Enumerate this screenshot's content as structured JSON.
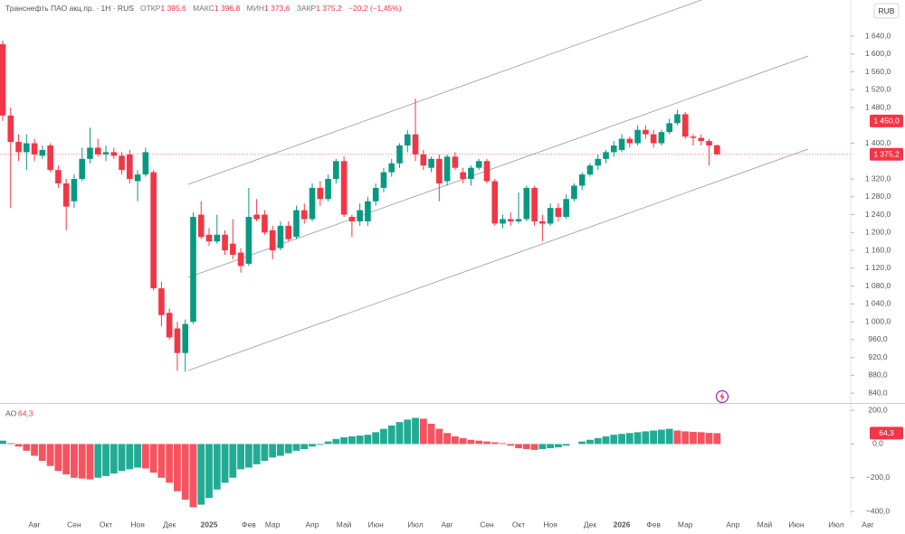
{
  "header": {
    "symbol": "Транснефть ПАО акц.пр. · 1Н · RUS",
    "stats": [
      {
        "label": "ОТКР",
        "value": "1 395,6"
      },
      {
        "label": "МАКС",
        "value": "1 396,8"
      },
      {
        "label": "МИН",
        "value": "1 373,6"
      },
      {
        "label": "ЗАКР",
        "value": "1 375,2"
      }
    ],
    "change": "−20,2 (−1,45%)",
    "currency": "RUB"
  },
  "chart_data": {
    "type": "candlestick",
    "categories": [
      null,
      null,
      null,
      null,
      "Авг",
      null,
      null,
      null,
      null,
      "Сен",
      null,
      null,
      null,
      "Окт",
      null,
      null,
      null,
      "Ноя",
      null,
      null,
      null,
      "Дек",
      null,
      null,
      null,
      null,
      "2025",
      null,
      null,
      null,
      null,
      "Фев",
      null,
      null,
      "Мар",
      null,
      null,
      null,
      null,
      "Апр",
      null,
      null,
      null,
      "Май",
      null,
      null,
      null,
      "Июн",
      null,
      null,
      null,
      null,
      "Июл",
      null,
      null,
      null,
      "Авг",
      null,
      null,
      null,
      null,
      "Сен",
      null,
      null,
      null,
      "Окт",
      null,
      null,
      null,
      "Ноя",
      null,
      null,
      null,
      null,
      "Дек",
      null,
      null,
      null,
      "2026",
      null,
      null,
      null,
      "Фев",
      null,
      null,
      null,
      "Мар",
      null,
      null,
      null,
      null,
      null,
      "Апр",
      null,
      null,
      null,
      "Май",
      null,
      null,
      null,
      "Июн",
      null,
      null,
      null,
      null,
      "Июл",
      null,
      null,
      null,
      "Авг"
    ],
    "open": [
      1622,
      1462,
      1403,
      1380,
      1400,
      1372,
      1395,
      1340,
      1310,
      1270,
      1320,
      1365,
      1390,
      1375,
      1380,
      1372,
      1375,
      1315,
      1330,
      1335,
      1075,
      1020,
      985,
      930,
      1000,
      1240,
      1195,
      1180,
      1195,
      1175,
      1155,
      1130,
      1240,
      1240,
      1205,
      1165,
      1215,
      1190,
      1250,
      1230,
      1300,
      1275,
      1320,
      1360,
      1235,
      1225,
      1225,
      1270,
      1300,
      1335,
      1355,
      1395,
      1420,
      1375,
      1345,
      1365,
      1315,
      1370,
      1335,
      1320,
      1345,
      1360,
      1315,
      1220,
      1230,
      1225,
      1230,
      1300,
      1225,
      1220,
      1255,
      1235,
      1275,
      1305,
      1330,
      1350,
      1365,
      1380,
      1385,
      1410,
      1400,
      1430,
      1420,
      1400,
      1425,
      1445,
      1465,
      1415,
      1412,
      1405,
      1395.6,
      null,
      null,
      null,
      null,
      null,
      null,
      null,
      null,
      null,
      null,
      null,
      null,
      null,
      null,
      null,
      null,
      null,
      null,
      null
    ],
    "high": [
      1630,
      1480,
      1420,
      1420,
      1410,
      1395,
      1400,
      1350,
      1320,
      1330,
      1390,
      1435,
      1410,
      1395,
      1390,
      1380,
      1385,
      1340,
      1390,
      1340,
      1090,
      1030,
      1000,
      1005,
      1245,
      1270,
      1210,
      1240,
      1205,
      1230,
      1165,
      1300,
      1275,
      1250,
      1215,
      1225,
      1225,
      1260,
      1265,
      1310,
      1315,
      1330,
      1365,
      1370,
      1240,
      1265,
      1280,
      1310,
      1345,
      1365,
      1400,
      1430,
      1500,
      1385,
      1370,
      1375,
      1375,
      1380,
      1345,
      1350,
      1365,
      1365,
      1320,
      1240,
      1245,
      1290,
      1305,
      1305,
      1240,
      1265,
      1265,
      1285,
      1310,
      1335,
      1355,
      1375,
      1385,
      1405,
      1420,
      1415,
      1440,
      1440,
      1430,
      1430,
      1455,
      1475,
      1470,
      1420,
      1420,
      1410,
      1396.8,
      null,
      null,
      null,
      null,
      null,
      null,
      null,
      null,
      null,
      null,
      null,
      null,
      null,
      null,
      null,
      null,
      null,
      null,
      null
    ],
    "low": [
      1450,
      1255,
      1360,
      1340,
      1360,
      1365,
      1335,
      1300,
      1205,
      1255,
      1315,
      1355,
      1370,
      1360,
      1365,
      1330,
      1310,
      1270,
      1325,
      1070,
      990,
      960,
      890,
      888,
      995,
      1185,
      1170,
      1175,
      1150,
      1140,
      1110,
      1125,
      1225,
      1195,
      1140,
      1160,
      1180,
      1185,
      1220,
      1225,
      1260,
      1270,
      1310,
      1235,
      1190,
      1215,
      1215,
      1260,
      1290,
      1325,
      1345,
      1380,
      1360,
      1340,
      1335,
      1270,
      1305,
      1340,
      1310,
      1305,
      1340,
      1310,
      1215,
      1210,
      1215,
      1220,
      1225,
      1215,
      1180,
      1215,
      1225,
      1230,
      1270,
      1295,
      1325,
      1340,
      1355,
      1370,
      1380,
      1390,
      1395,
      1410,
      1390,
      1395,
      1420,
      1440,
      1410,
      1395,
      1395,
      1350,
      1373.6,
      null,
      null,
      null,
      null,
      null,
      null,
      null,
      null,
      null,
      null,
      null,
      null,
      null,
      null,
      null,
      null,
      null,
      null,
      null
    ],
    "close": [
      1462,
      1403,
      1380,
      1400,
      1375,
      1385,
      1340,
      1310,
      1258,
      1320,
      1365,
      1390,
      1375,
      1380,
      1372,
      1340,
      1320,
      1330,
      1380,
      1075,
      1015,
      965,
      930,
      995,
      1235,
      1190,
      1180,
      1195,
      1160,
      1150,
      1125,
      1235,
      1230,
      1200,
      1160,
      1215,
      1185,
      1250,
      1230,
      1300,
      1275,
      1320,
      1360,
      1240,
      1225,
      1250,
      1270,
      1300,
      1335,
      1355,
      1395,
      1420,
      1375,
      1350,
      1365,
      1310,
      1370,
      1345,
      1320,
      1345,
      1360,
      1315,
      1220,
      1230,
      1225,
      1230,
      1300,
      1225,
      1220,
      1255,
      1235,
      1275,
      1305,
      1330,
      1350,
      1365,
      1380,
      1395,
      1410,
      1400,
      1430,
      1420,
      1400,
      1425,
      1445,
      1465,
      1415,
      1412,
      1405,
      1395,
      1375.2,
      null,
      null,
      null,
      null,
      null,
      null,
      null,
      null,
      null,
      null,
      null,
      null,
      null,
      null,
      null,
      null,
      null,
      null,
      null
    ],
    "up_color": "#089981",
    "down_color": "#f23645",
    "ylim": [
      818,
      1721
    ],
    "yticks": [
      {
        "value": 1640,
        "label": "1 640,0"
      },
      {
        "value": 1600,
        "label": "1 600,0"
      },
      {
        "value": 1560,
        "label": "1 560,0"
      },
      {
        "value": 1520,
        "label": "1 520,0"
      },
      {
        "value": 1480,
        "label": "1 480,0"
      },
      {
        "value": 1400,
        "label": "1 400,0"
      },
      {
        "value": 1320,
        "label": "1 320,0"
      },
      {
        "value": 1280,
        "label": "1 280,0"
      },
      {
        "value": 1240,
        "label": "1 240,0"
      },
      {
        "value": 1200,
        "label": "1 200,0"
      },
      {
        "value": 1160,
        "label": "1 160,0"
      },
      {
        "value": 1120,
        "label": "1 120,0"
      },
      {
        "value": 1080,
        "label": "1 080,0"
      },
      {
        "value": 1040,
        "label": "1 040,0"
      },
      {
        "value": 1000,
        "label": "1 000,0"
      },
      {
        "value": 960,
        "label": "960,0"
      },
      {
        "value": 920,
        "label": "920,0"
      },
      {
        "value": 880,
        "label": "880,0"
      },
      {
        "value": 840,
        "label": "840,0"
      }
    ],
    "last_price": {
      "value": 1375.2,
      "label": "1 375,2"
    },
    "alert_level": {
      "value": 1450,
      "label": "1 450,0"
    },
    "indicator": {
      "type": "bar",
      "name": "AO",
      "value_label": "64,3",
      "values": [
        20,
        5,
        -15,
        -40,
        -70,
        -100,
        -130,
        -160,
        -180,
        -200,
        -205,
        -210,
        -200,
        -190,
        -175,
        -160,
        -150,
        -140,
        -145,
        -170,
        -200,
        -230,
        -280,
        -330,
        -375,
        -360,
        -320,
        -270,
        -230,
        -200,
        -150,
        -140,
        -120,
        -100,
        -80,
        -70,
        -55,
        -40,
        -30,
        -15,
        -5,
        15,
        30,
        40,
        45,
        50,
        55,
        70,
        90,
        110,
        130,
        145,
        155,
        150,
        120,
        90,
        65,
        45,
        35,
        25,
        20,
        15,
        10,
        5,
        -10,
        -25,
        -30,
        -35,
        -30,
        -25,
        -20,
        -10,
        0,
        15,
        25,
        35,
        45,
        55,
        60,
        65,
        70,
        75,
        80,
        85,
        90,
        80,
        75,
        72,
        70,
        66,
        64.3,
        null,
        null,
        null,
        null,
        null,
        null,
        null,
        null,
        null,
        null,
        null,
        null,
        null,
        null,
        null,
        null,
        null,
        null,
        null
      ],
      "up_color": "#22ab94",
      "down_color": "#f7525f",
      "ylim": [
        -432,
        238
      ],
      "yticks": [
        {
          "value": 200,
          "label": "200,0"
        },
        {
          "value": 0,
          "label": "0,0"
        },
        {
          "value": -200,
          "label": "−200,0"
        },
        {
          "value": -400,
          "label": "−400,0"
        }
      ]
    }
  }
}
